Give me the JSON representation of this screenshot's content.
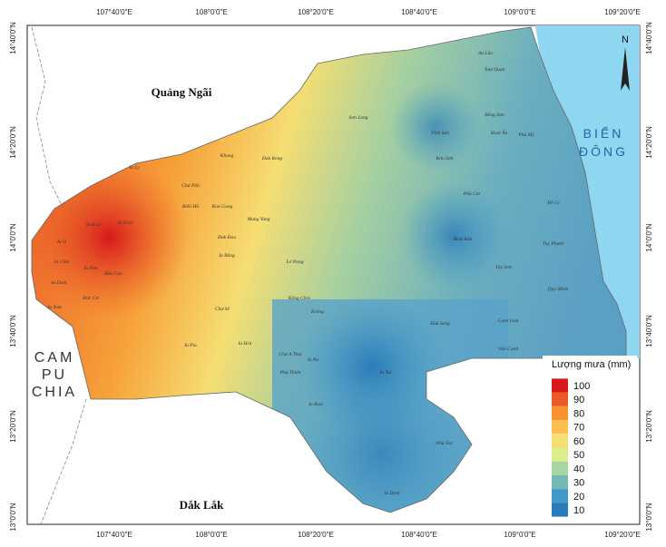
{
  "map": {
    "lon_labels": [
      "107°40'0\"E",
      "108°0'0\"E",
      "108°20'0\"E",
      "108°40'0\"E",
      "109°0'0\"E",
      "109°20'0\"E"
    ],
    "lat_labels": [
      "14°40'0\"N",
      "14°20'0\"N",
      "14°0'0\"N",
      "13°40'0\"N",
      "13°20'0\"N",
      "13°0'0\"N"
    ],
    "regions": [
      "Quảng Ngãi",
      "Dắk Lắk",
      "CAM",
      "PU",
      "CHIA",
      "BIỂN",
      "ĐÔNG"
    ],
    "north": "N",
    "communes": [
      "Ia Ly",
      "Chư Păh",
      "Biển Hồ",
      "Kon Gang",
      "Ia Grai",
      "Ia Krai",
      "Ia O",
      "Ia Chia",
      "Ia Dom",
      "Ia Dok",
      "Đức Cơ",
      "Ia Nan",
      "Bàu Cạn",
      "Ia Băng",
      "Đak Đoa",
      "Mang Yang",
      "Kbang",
      "Đak Rong",
      "Sơn Lang",
      "Lơ Pang",
      "Kông Chro",
      "Chư A Thai",
      "Phú Thiện",
      "Ia Pa",
      "Ia Tul",
      "Ia Rsai",
      "Ia Hrú",
      "Chư Sê",
      "Ia Pia",
      "Vĩnh Sơn",
      "An Lão",
      "Tam Quan",
      "Bồng Sơn",
      "Hoài Ân",
      "Phù Mỹ",
      "Kim Sơn",
      "Tây Sơn",
      "Bình Khê",
      "Quy Nhơn",
      "Vân Canh",
      "Canh Liên",
      "Đak Song",
      "Krông",
      "Phú Túc",
      "Ia Dreh",
      "Tuy Phước",
      "Phù Cát",
      "Đề Gi"
    ],
    "legend": {
      "title": "Lượng mưa (mm)",
      "ticks": [
        100,
        90,
        80,
        70,
        60,
        50,
        40,
        30,
        20,
        10
      ],
      "colors": [
        "#d7191c",
        "#ea5a26",
        "#f7922f",
        "#fdbe4f",
        "#f5de73",
        "#dcef8a",
        "#a6d69f",
        "#74b8b6",
        "#3f98c8",
        "#2b7bba"
      ]
    }
  }
}
